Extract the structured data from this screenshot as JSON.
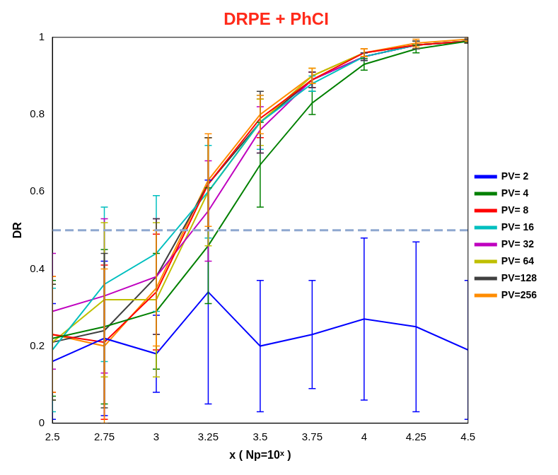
{
  "chart_data": {
    "type": "line",
    "title": "DRPE + PhCI",
    "x_label": "x ( Np=10ˣ )",
    "y_label": "DR",
    "x": [
      2.5,
      2.75,
      3,
      3.25,
      3.5,
      3.75,
      4,
      4.25,
      4.5
    ],
    "xlim": [
      2.5,
      4.5
    ],
    "xticks": [
      2.5,
      2.75,
      3,
      3.25,
      3.5,
      3.75,
      4,
      4.25,
      4.5
    ],
    "ylim": [
      0,
      1
    ],
    "yticks": [
      0,
      0.2,
      0.4,
      0.6,
      0.8,
      1
    ],
    "grid": false,
    "legend": "right",
    "reference_line": 0.5,
    "series": [
      {
        "name": "PV= 2",
        "color": "#0000ff",
        "values": [
          0.16,
          0.22,
          0.18,
          0.34,
          0.2,
          0.23,
          0.27,
          0.25,
          0.19
        ],
        "errors": [
          0.15,
          0.2,
          0.1,
          0.29,
          0.17,
          0.14,
          0.21,
          0.22,
          0.18
        ]
      },
      {
        "name": "PV= 4",
        "color": "#008000",
        "values": [
          0.22,
          0.25,
          0.29,
          0.46,
          0.67,
          0.83,
          0.93,
          0.97,
          0.99
        ],
        "errors": [
          0.15,
          0.2,
          0.15,
          0.15,
          0.11,
          0.03,
          0.015,
          0.01,
          0.005
        ]
      },
      {
        "name": "PV= 8",
        "color": "#ff0000",
        "values": [
          0.23,
          0.21,
          0.34,
          0.62,
          0.79,
          0.89,
          0.96,
          0.98,
          0.99
        ],
        "errors": [
          0.15,
          0.2,
          0.15,
          0.12,
          0.05,
          0.02,
          0.01,
          0.01,
          0.005
        ]
      },
      {
        "name": "PV= 16",
        "color": "#00bfbf",
        "values": [
          0.19,
          0.36,
          0.44,
          0.6,
          0.78,
          0.88,
          0.95,
          0.98,
          0.99
        ],
        "errors": [
          0.16,
          0.2,
          0.15,
          0.12,
          0.07,
          0.02,
          0.01,
          0.01,
          0.005
        ]
      },
      {
        "name": "PV= 32",
        "color": "#bf00bf",
        "values": [
          0.29,
          0.33,
          0.38,
          0.55,
          0.76,
          0.89,
          0.95,
          0.98,
          0.99
        ],
        "errors": [
          0.15,
          0.2,
          0.15,
          0.13,
          0.06,
          0.02,
          0.01,
          0.01,
          0.005
        ]
      },
      {
        "name": "PV= 64",
        "color": "#bfbf00",
        "values": [
          0.21,
          0.32,
          0.32,
          0.6,
          0.78,
          0.9,
          0.96,
          0.98,
          0.99
        ],
        "errors": [
          0.15,
          0.2,
          0.2,
          0.14,
          0.06,
          0.02,
          0.01,
          0.01,
          0.005
        ]
      },
      {
        "name": "PV=128",
        "color": "#404040",
        "values": [
          0.21,
          0.24,
          0.38,
          0.62,
          0.78,
          0.89,
          0.95,
          0.98,
          0.99
        ],
        "errors": [
          0.15,
          0.2,
          0.15,
          0.12,
          0.08,
          0.02,
          0.01,
          0.01,
          0.005
        ]
      },
      {
        "name": "PV=256",
        "color": "#ff8c00",
        "values": [
          0.23,
          0.2,
          0.35,
          0.63,
          0.8,
          0.9,
          0.96,
          0.985,
          0.995
        ],
        "errors": [
          0.15,
          0.2,
          0.15,
          0.12,
          0.05,
          0.02,
          0.01,
          0.01,
          0.005
        ]
      }
    ]
  }
}
